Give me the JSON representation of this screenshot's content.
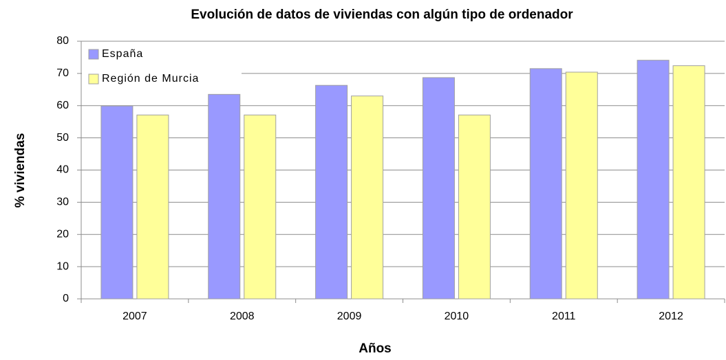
{
  "chart_data": {
    "type": "bar",
    "title": "Evolución de datos de viviendas con algún tipo de ordenador",
    "x_label": "Años",
    "y_label": "% viviendas",
    "categories": [
      "2007",
      "2008",
      "2009",
      "2010",
      "2011",
      "2012"
    ],
    "series": [
      {
        "name": "España",
        "color": "#9999ff",
        "values": [
          59.9,
          63.5,
          66.3,
          68.7,
          71.5,
          74.1
        ]
      },
      {
        "name": "Región de Murcia",
        "color": "#ffff99",
        "values": [
          57.1,
          57.1,
          63.0,
          57.1,
          70.4,
          72.4
        ]
      }
    ],
    "ylim": [
      0,
      80
    ],
    "yticks": [
      0,
      10,
      20,
      30,
      40,
      50,
      60,
      70,
      80
    ],
    "grid": true,
    "legend": "top-left"
  }
}
